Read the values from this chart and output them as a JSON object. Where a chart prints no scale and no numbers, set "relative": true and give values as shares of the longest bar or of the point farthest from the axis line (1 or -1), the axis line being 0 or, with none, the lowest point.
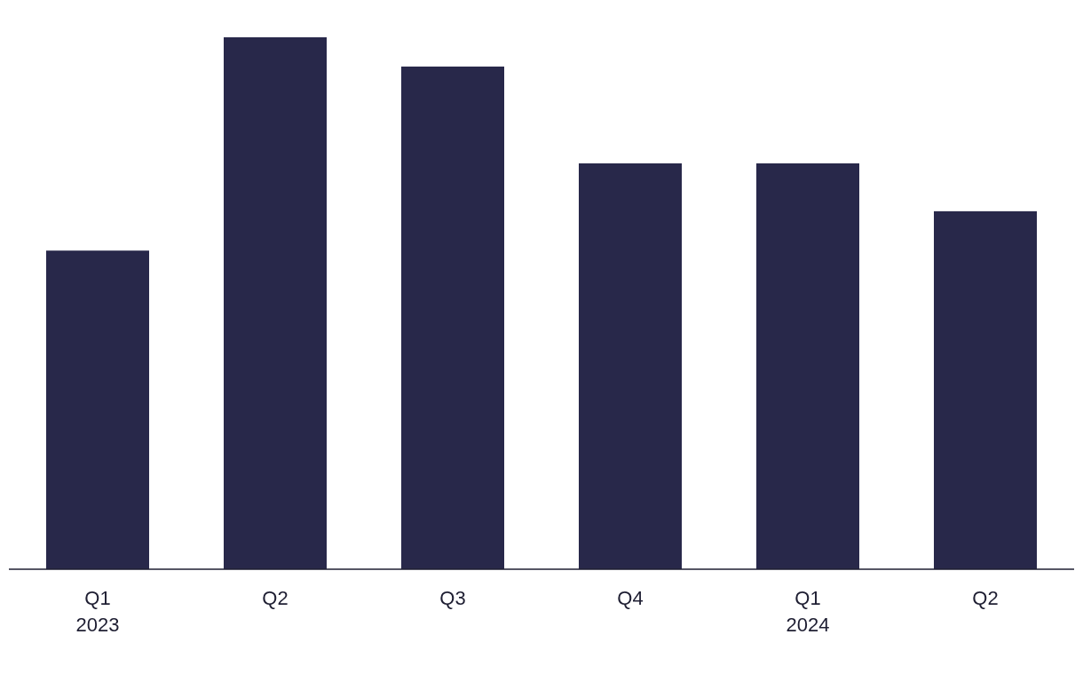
{
  "chart_data": {
    "type": "bar",
    "relative": true,
    "categories": [
      "Q1\n2023",
      "Q2",
      "Q3",
      "Q4",
      "Q1\n2024",
      "Q2"
    ],
    "values": [
      0.599,
      1,
      0.945,
      0.763,
      0.763,
      0.673
    ],
    "color": "#28284a"
  }
}
